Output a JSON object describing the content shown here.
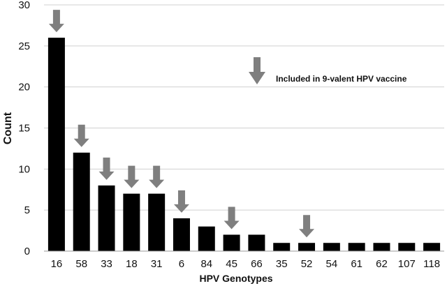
{
  "chart_data": {
    "type": "bar",
    "title": "",
    "xlabel": "HPV Genotypes",
    "ylabel": "Count",
    "ylim": [
      0,
      30
    ],
    "yticks": [
      0,
      5,
      10,
      15,
      20,
      25,
      30
    ],
    "grid": true,
    "categories": [
      "16",
      "58",
      "33",
      "18",
      "31",
      "6",
      "84",
      "45",
      "66",
      "35",
      "52",
      "54",
      "61",
      "62",
      "107",
      "118"
    ],
    "values": [
      26,
      12,
      8,
      7,
      7,
      4,
      3,
      2,
      2,
      1,
      1,
      1,
      1,
      1,
      1,
      1
    ],
    "included_in_vaccine": [
      true,
      true,
      true,
      true,
      true,
      true,
      false,
      true,
      false,
      false,
      true,
      false,
      false,
      false,
      false,
      false
    ],
    "legend": {
      "label": "Included in 9-valent HPV vaccine",
      "placement": "top-right"
    },
    "colors": {
      "bar": "#000000",
      "arrow": "#7f7f7f",
      "grid": "#d0d0d0"
    }
  }
}
